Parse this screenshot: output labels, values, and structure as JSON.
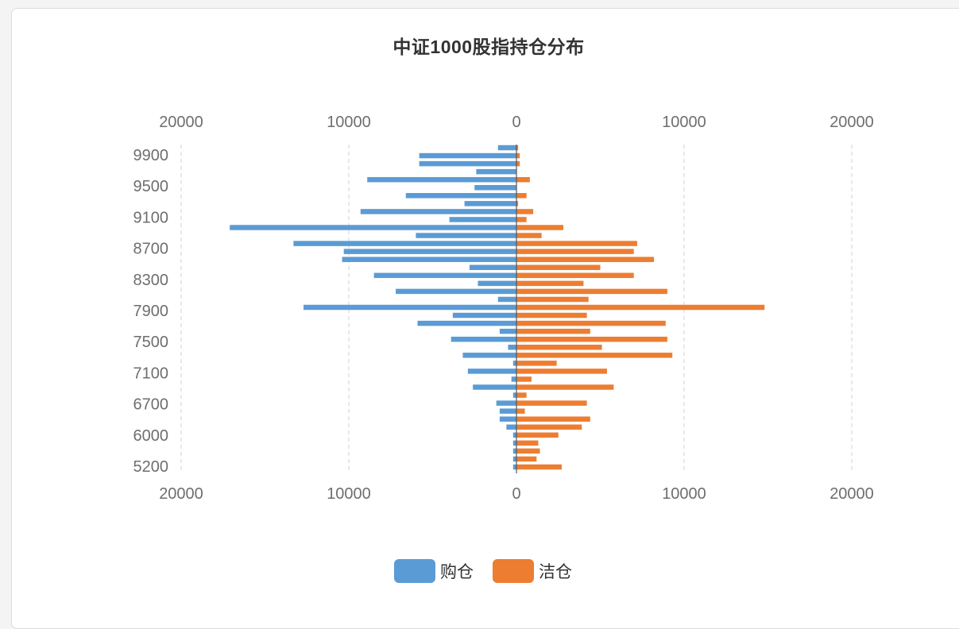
{
  "colors": {
    "buy": "#5b9bd5",
    "sell": "#ed7d31"
  },
  "chart_data": {
    "type": "bar",
    "orientation": "horizontal",
    "layout": "diverging",
    "title": "中证1000股指持仓分布",
    "x_tick_labels": [
      "20000",
      "10000",
      "0",
      "10000",
      "20000"
    ],
    "xlim": [
      -20000,
      20000
    ],
    "y_tick_labels": [
      "9900",
      "9500",
      "9100",
      "8700",
      "8300",
      "7900",
      "7500",
      "7100",
      "6700",
      "6000",
      "5200"
    ],
    "grid": "vertical dashed",
    "legend_position": "bottom-center",
    "series": [
      {
        "name": "购仓",
        "values": [
          1100,
          5800,
          5800,
          2400,
          8900,
          2500,
          6600,
          3100,
          9300,
          4000,
          17100,
          6000,
          13300,
          10300,
          10400,
          2800,
          8500,
          2300,
          7200,
          1100,
          12700,
          3800,
          5900,
          1000,
          3900,
          500,
          3200,
          200,
          2900,
          300,
          2600,
          200,
          1200,
          1000,
          1000,
          600,
          200,
          200,
          200,
          200,
          200
        ]
      },
      {
        "name": "洁仓",
        "values": [
          100,
          200,
          200,
          0,
          800,
          0,
          600,
          100,
          1000,
          600,
          2800,
          1500,
          7200,
          7000,
          8200,
          5000,
          7000,
          4000,
          9000,
          4300,
          14800,
          4200,
          8900,
          4400,
          9000,
          5100,
          9300,
          2400,
          5400,
          900,
          5800,
          600,
          4200,
          500,
          4400,
          3900,
          2500,
          1300,
          1400,
          1200,
          2700
        ]
      }
    ]
  }
}
